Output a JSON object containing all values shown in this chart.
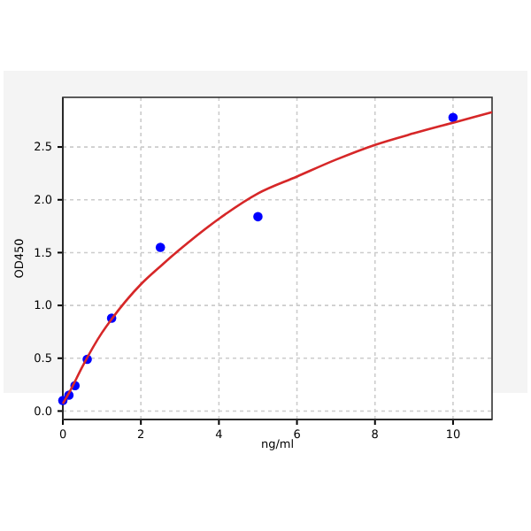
{
  "chart_data": {
    "type": "scatter",
    "xlabel": "ng/ml",
    "ylabel": "OD450",
    "xlim": [
      0,
      11
    ],
    "xticks": [
      0,
      2,
      4,
      6,
      8,
      10
    ],
    "ylim": [
      -0.08,
      2.97
    ],
    "yticks": [
      {
        "value": 0,
        "label": "0.0"
      },
      0.5,
      {
        "value": 1,
        "label": "1.0"
      },
      1.5,
      {
        "value": 2,
        "label": "2.0"
      },
      2.5
    ],
    "grid": true,
    "marker": "circle",
    "series": [
      {
        "type": "scatter",
        "color": "#0000ff",
        "x": [
          0,
          0.156,
          0.312,
          0.625,
          1.25,
          2.5,
          5,
          10
        ],
        "values": [
          0.1,
          0.15,
          0.24,
          0.49,
          0.88,
          1.55,
          1.84,
          2.78
        ]
      },
      {
        "type": "line",
        "color": "#d62728",
        "marker": "none",
        "x": [
          0,
          0.2,
          0.5,
          1,
          1.25,
          2,
          2.5,
          3,
          4,
          5,
          6,
          7,
          8,
          9,
          10,
          11
        ],
        "values": [
          0.07,
          0.2,
          0.42,
          0.74,
          0.87,
          1.2,
          1.37,
          1.53,
          1.82,
          2.06,
          2.22,
          2.38,
          2.52,
          2.63,
          2.73,
          2.83
        ]
      }
    ]
  }
}
